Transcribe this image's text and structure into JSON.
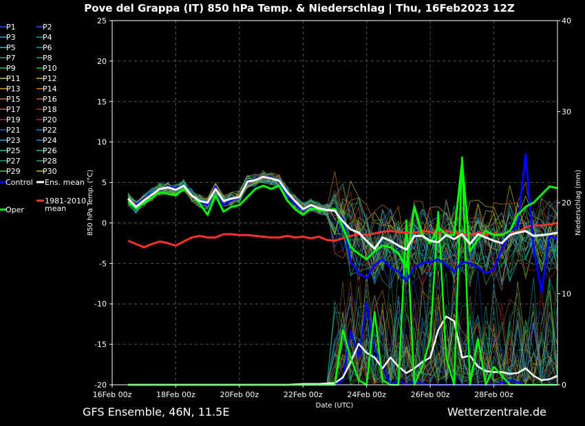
{
  "title": "Pove del Grappa  (IT)  850 hPa Temp. & Niederschlag | Thu, 16Feb2023 12Z",
  "footer_left": "GFS Ensemble, 46N, 11.5E",
  "footer_right": "Wetterzentrale.de",
  "chart_data": {
    "type": "line",
    "title": "Pove del Grappa  (IT)  850 hPa Temp. & Niederschlag | Thu, 16Feb2023 12Z",
    "xlabel": "Date (UTC)",
    "ylabel": "850 hPa Temp. (°C)",
    "y2label": "Niederschlag (mm)",
    "x_ticks": [
      "16Feb 00z",
      "18Feb 00z",
      "20Feb 00z",
      "22Feb 00z",
      "24Feb 00z",
      "26Feb 00z",
      "28Feb 00z"
    ],
    "x_range_days": [
      0,
      14
    ],
    "ylim": [
      -20,
      25
    ],
    "y_ticks": [
      -20,
      -15,
      -10,
      -5,
      0,
      5,
      10,
      15,
      20,
      25
    ],
    "y2lim": [
      0,
      40
    ],
    "y2_ticks": [
      0,
      10,
      20,
      30,
      40
    ],
    "grid": true,
    "legend_position": "left",
    "legend_members": [
      "P1",
      "P2",
      "P3",
      "P4",
      "P5",
      "P6",
      "P7",
      "P8",
      "P9",
      "P10",
      "P11",
      "P12",
      "P13",
      "P14",
      "P15",
      "P16",
      "P17",
      "P18",
      "P19",
      "P20",
      "P21",
      "P22",
      "P23",
      "P24",
      "P25",
      "P26",
      "P27",
      "P28",
      "P29",
      "P30"
    ],
    "member_colors": [
      "#1a5cff",
      "#3a4cff",
      "#1fb0c8",
      "#17a5b5",
      "#20c0d0",
      "#12a090",
      "#16b090",
      "#20b060",
      "#30c050",
      "#20c020",
      "#c8c830",
      "#c8b040",
      "#d0a030",
      "#d08020",
      "#c87830",
      "#b07030",
      "#c06040",
      "#b03020",
      "#a04020",
      "#c02030",
      "#1060d0",
      "#1090e0",
      "#30a0d0",
      "#2090c0",
      "#20c0a0",
      "#20b080",
      "#20a070",
      "#30b050",
      "#60c040",
      "#c0c020"
    ],
    "special_legend": [
      {
        "label": "Control",
        "color": "#0000ff"
      },
      {
        "label": "Ens. mean",
        "color": "#ffffff"
      },
      {
        "label": "1981-2010 mean",
        "line1": "1981-2010",
        "line2": "mean",
        "color": "#ff3030"
      },
      {
        "label": "Oper",
        "color": "#00ff00"
      }
    ],
    "series": [
      {
        "name": "Control",
        "color": "#0000ff",
        "x": [
          0.5,
          0.75,
          1,
          1.25,
          1.5,
          1.75,
          2,
          2.25,
          2.5,
          2.75,
          3,
          3.25,
          3.5,
          3.75,
          4,
          4.25,
          4.5,
          4.75,
          5,
          5.25,
          5.5,
          5.75,
          6,
          6.25,
          6.5,
          6.75,
          7,
          7.25,
          7.5,
          7.75,
          8,
          8.25,
          8.5,
          8.75,
          9,
          9.25,
          9.5,
          9.75,
          10,
          10.25,
          10.5,
          10.75,
          11,
          11.25,
          11.5,
          11.75,
          12,
          12.25,
          12.5,
          12.75,
          13,
          13.25,
          13.5,
          13.75,
          14
        ],
        "y": [
          3,
          2.2,
          3,
          3.6,
          4.2,
          4.5,
          4.3,
          4.6,
          3.5,
          2.5,
          2.3,
          4.5,
          2.2,
          2.8,
          3.2,
          5.2,
          5.4,
          5.7,
          5.6,
          5.1,
          3.5,
          2.3,
          1.6,
          2.1,
          1.8,
          1.6,
          1.5,
          0.5,
          -4.8,
          -6.2,
          -6.8,
          -5.2,
          -4.5,
          -5.5,
          -6,
          -7.2,
          -5.5,
          -5,
          -4.8,
          -4.5,
          -5.2,
          -6,
          -4.8,
          -5,
          -5.5,
          -6.2,
          -5.8,
          -3.2,
          -1,
          -0.5,
          8.5,
          -3,
          -8.5,
          -1.5,
          -2
        ]
      },
      {
        "name": "Ens. mean",
        "color": "#ffffff",
        "x": [
          0.5,
          0.75,
          1,
          1.25,
          1.5,
          1.75,
          2,
          2.25,
          2.5,
          2.75,
          3,
          3.25,
          3.5,
          3.75,
          4,
          4.25,
          4.5,
          4.75,
          5,
          5.25,
          5.5,
          5.75,
          6,
          6.25,
          6.5,
          6.75,
          7,
          7.25,
          7.5,
          7.75,
          8,
          8.25,
          8.5,
          8.75,
          9,
          9.25,
          9.5,
          9.75,
          10,
          10.25,
          10.5,
          10.75,
          11,
          11.25,
          11.5,
          11.75,
          12,
          12.25,
          12.5,
          12.75,
          13,
          13.25,
          13.5,
          13.75,
          14
        ],
        "y": [
          3,
          2,
          2.8,
          3.5,
          4.2,
          4.4,
          4.1,
          4.6,
          3.4,
          2.7,
          2.5,
          4.2,
          2.7,
          3,
          3.2,
          5.1,
          5.3,
          5.7,
          5.5,
          5.2,
          3.8,
          2.7,
          1.7,
          2.2,
          1.8,
          1.6,
          1.5,
          0.2,
          -0.8,
          -1.2,
          -2.2,
          -3.2,
          -1.8,
          -2.2,
          -2.8,
          -3.3,
          -1.6,
          -1.6,
          -2.2,
          -2.4,
          -1.5,
          -2,
          -1.4,
          -2.6,
          -1.4,
          -1.8,
          -2.2,
          -2.5,
          -1.5,
          -1.2,
          -1,
          -1.6,
          -1.5,
          -1.4,
          -1.2
        ]
      },
      {
        "name": "Oper",
        "color": "#00ff00",
        "x": [
          0.5,
          0.75,
          1,
          1.25,
          1.5,
          1.75,
          2,
          2.25,
          2.5,
          2.75,
          3,
          3.25,
          3.5,
          3.75,
          4,
          4.25,
          4.5,
          4.75,
          5,
          5.25,
          5.5,
          5.75,
          6,
          6.25,
          6.5,
          6.75,
          7,
          7.25,
          7.5,
          7.75,
          8,
          8.25,
          8.5,
          8.75,
          9,
          9.25,
          9.5,
          9.75,
          10,
          10.25,
          10.5,
          10.75,
          11,
          11.25,
          11.5,
          11.75,
          12,
          12.25,
          12.5,
          12.75,
          13,
          13.25,
          13.5,
          13.75,
          14
        ],
        "y": [
          2.6,
          1.8,
          2.5,
          3.1,
          3.8,
          3.6,
          3.4,
          4.2,
          3.5,
          2.4,
          1,
          3.4,
          1.4,
          2,
          2.2,
          3.2,
          4.2,
          4.6,
          4.2,
          4.6,
          2.8,
          1.7,
          1,
          1.8,
          1.6,
          1.6,
          1.7,
          -0.5,
          -3,
          -3.8,
          -4.5,
          -3.5,
          -2.8,
          -3,
          -3.8,
          -5.5,
          2,
          -1.5,
          -2.5,
          -0.5,
          -1.5,
          -1.5,
          7.5,
          -3.5,
          -2,
          -1,
          -1.5,
          -1.5,
          -1,
          1,
          2,
          2.5,
          3.5,
          4.5,
          4.3
        ]
      },
      {
        "name": "1981-2010 mean",
        "color": "#ff3030",
        "x": [
          0.5,
          0.75,
          1,
          1.25,
          1.5,
          1.75,
          2,
          2.25,
          2.5,
          2.75,
          3,
          3.25,
          3.5,
          3.75,
          4,
          4.25,
          4.5,
          4.75,
          5,
          5.25,
          5.5,
          5.75,
          6,
          6.25,
          6.5,
          6.75,
          7,
          7.25,
          7.5,
          7.75,
          8,
          8.25,
          8.5,
          8.75,
          9,
          9.25,
          9.5,
          9.75,
          10,
          10.25,
          10.5,
          10.75,
          11,
          11.25,
          11.5,
          11.75,
          12,
          12.25,
          12.5,
          12.75,
          13,
          13.25,
          13.5,
          13.75,
          14
        ],
        "y": [
          -2.2,
          -2.6,
          -3,
          -2.6,
          -2.3,
          -2.5,
          -2.8,
          -2.3,
          -1.8,
          -1.6,
          -1.8,
          -1.8,
          -1.4,
          -1.4,
          -1.5,
          -1.5,
          -1.6,
          -1.7,
          -1.8,
          -1.8,
          -1.6,
          -1.8,
          -1.7,
          -1.9,
          -1.7,
          -2.1,
          -2.2,
          -1.9,
          -1.6,
          -1.4,
          -1.5,
          -1.3,
          -1.1,
          -1,
          -1.1,
          -1.2,
          -1.2,
          -1,
          -1.1,
          -1.3,
          -1,
          -1.2,
          -1.4,
          -1.5,
          -1.2,
          -1.4,
          -1.3,
          -1.4,
          -1.1,
          -1.2,
          -0.5,
          -0.3,
          -0.3,
          -0.2,
          0
        ]
      },
      {
        "name": "Control precip (mm)",
        "color": "#0000ff",
        "axis": "right",
        "x": [
          0.5,
          7,
          7.25,
          7.5,
          7.75,
          8,
          8.25,
          8.5,
          8.75,
          9,
          9.25,
          9.5,
          10,
          11,
          11.5,
          12,
          12.5,
          13,
          13.5,
          14
        ],
        "y": [
          0,
          0,
          0.5,
          6,
          3,
          9,
          4,
          2,
          0,
          0.5,
          0,
          0.3,
          0,
          0,
          0,
          0,
          0.5,
          0,
          0,
          0
        ]
      },
      {
        "name": "Ens. mean precip (mm)",
        "color": "#ffffff",
        "axis": "right",
        "x": [
          0.5,
          5.5,
          6,
          6.5,
          7,
          7.25,
          7.5,
          7.75,
          8,
          8.25,
          8.5,
          8.75,
          9,
          9.25,
          9.5,
          9.75,
          10,
          10.25,
          10.5,
          10.75,
          11,
          11.25,
          11.5,
          11.75,
          12,
          12.25,
          12.5,
          12.75,
          13,
          13.25,
          13.5,
          13.75,
          14
        ],
        "y": [
          0,
          0,
          0.1,
          0.1,
          0.2,
          0.8,
          2.5,
          4.5,
          3.5,
          3,
          1.8,
          3,
          2,
          1.3,
          1.8,
          2.5,
          3,
          6,
          7.5,
          7,
          3,
          3.2,
          2,
          1.5,
          1.4,
          1.4,
          1.2,
          1.3,
          1.8,
          1,
          0.5,
          0.6,
          1
        ]
      },
      {
        "name": "Oper precip (mm)",
        "color": "#00ff00",
        "axis": "right",
        "x": [
          0.5,
          7,
          7.25,
          7.5,
          7.75,
          8,
          8.25,
          8.5,
          8.75,
          9,
          9.25,
          9.5,
          9.75,
          10,
          10.25,
          10.5,
          10.75,
          11,
          11.25,
          11.5,
          11.75,
          12,
          12.5,
          13,
          13.5,
          14
        ],
        "y": [
          0,
          0,
          6,
          3,
          0.5,
          0,
          8,
          0.5,
          0,
          0,
          18,
          0,
          2,
          5,
          19,
          3,
          0,
          25,
          0,
          5,
          0,
          2,
          0,
          0,
          0,
          0
        ]
      }
    ]
  }
}
